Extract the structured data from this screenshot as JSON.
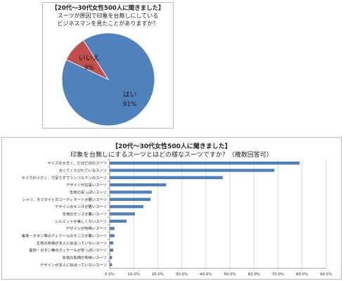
{
  "chart_data": [
    {
      "type": "pie",
      "title": "【20代～30代女性500人に聞きました】",
      "subtitle_lines": [
        "スーツが原因で印象を台無しにしている",
        "ビジネスマンを見たことがありますか？"
      ],
      "slices": [
        {
          "label": "はい",
          "value": 91,
          "value_label": "91%",
          "color": "#4f81bd"
        },
        {
          "label": "いいえ",
          "value": 9,
          "value_label": "9%",
          "color": "#c0504d"
        }
      ]
    },
    {
      "type": "bar",
      "orientation": "horizontal",
      "title": "【20代～30代女性500人に聞きました】",
      "subtitle": "印象を台無しにするスーツとはどの様なスーツですか？（複数回答可）",
      "color": "#4f81bd",
      "categories": [
        "サイズが大きく、だぼだぼのスーツ",
        "古くてくたびれているスーツ",
        "サイズが小さく、寸足らずでツンツルテンのスーツ",
        "デザインが古臭いスーツ",
        "生地の安っぽいスーツ",
        "シャツ、ネクタイとのコーディネートが悪いスーツ",
        "デザインのセンスが悪いスーツ",
        "生地のセンスが悪いスーツ",
        "シルエットが美しくないスーツ",
        "デザインが地味いスーツ",
        "裏地・ボタン等のディテールのセンスが悪いスーツ",
        "生地の色柄が本人に似合っていないスーツ",
        "裏地・ボタン等のディテールが安っぽいスーツ",
        "生地の色柄が地味いスーツ",
        "デザインが本人に似合っていないスーツ"
      ],
      "values": [
        79.0,
        68.5,
        47.0,
        23.5,
        17.5,
        17.0,
        14.0,
        10.5,
        7.0,
        2.0,
        2.0,
        1.5,
        1.5,
        1.0,
        1.0
      ],
      "tick_labels": [
        "0.0%",
        "10.0%",
        "20.0%",
        "30.0%",
        "40.0%",
        "50.0%",
        "60.0%",
        "70.0%",
        "80.0%",
        "90.0%"
      ],
      "xlim": [
        0,
        90
      ],
      "grid": true
    }
  ]
}
